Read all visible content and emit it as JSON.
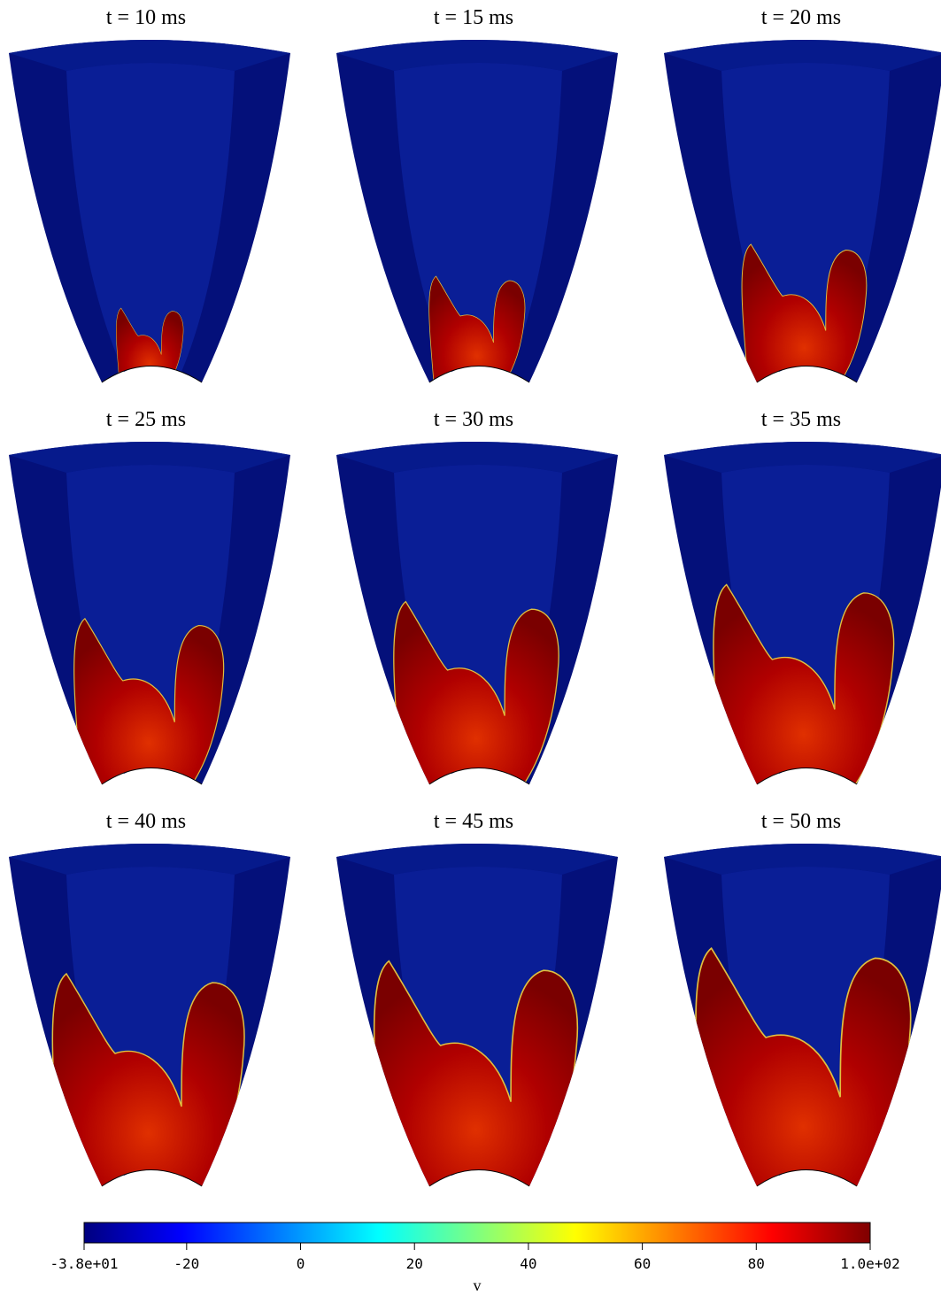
{
  "panels": [
    {
      "title": "t = 10 ms"
    },
    {
      "title": "t = 15 ms"
    },
    {
      "title": "t = 20 ms"
    },
    {
      "title": "t = 25 ms"
    },
    {
      "title": "t = 30 ms"
    },
    {
      "title": "t = 35 ms"
    },
    {
      "title": "t = 40 ms"
    },
    {
      "title": "t = 45 ms"
    },
    {
      "title": "t = 50 ms"
    }
  ],
  "colorbar": {
    "label": "v",
    "range": [
      -38,
      100
    ],
    "ticks": [
      {
        "value": -38,
        "label": "-3.8e+01"
      },
      -20,
      0,
      20,
      40,
      60,
      80,
      {
        "value": 100,
        "label": "1.0e+02"
      }
    ],
    "colormap": [
      "#00007f",
      "#0000ff",
      "#007fff",
      "#00ffff",
      "#7fff7f",
      "#ffff00",
      "#ff7f00",
      "#ff0000",
      "#7f0000"
    ]
  }
}
